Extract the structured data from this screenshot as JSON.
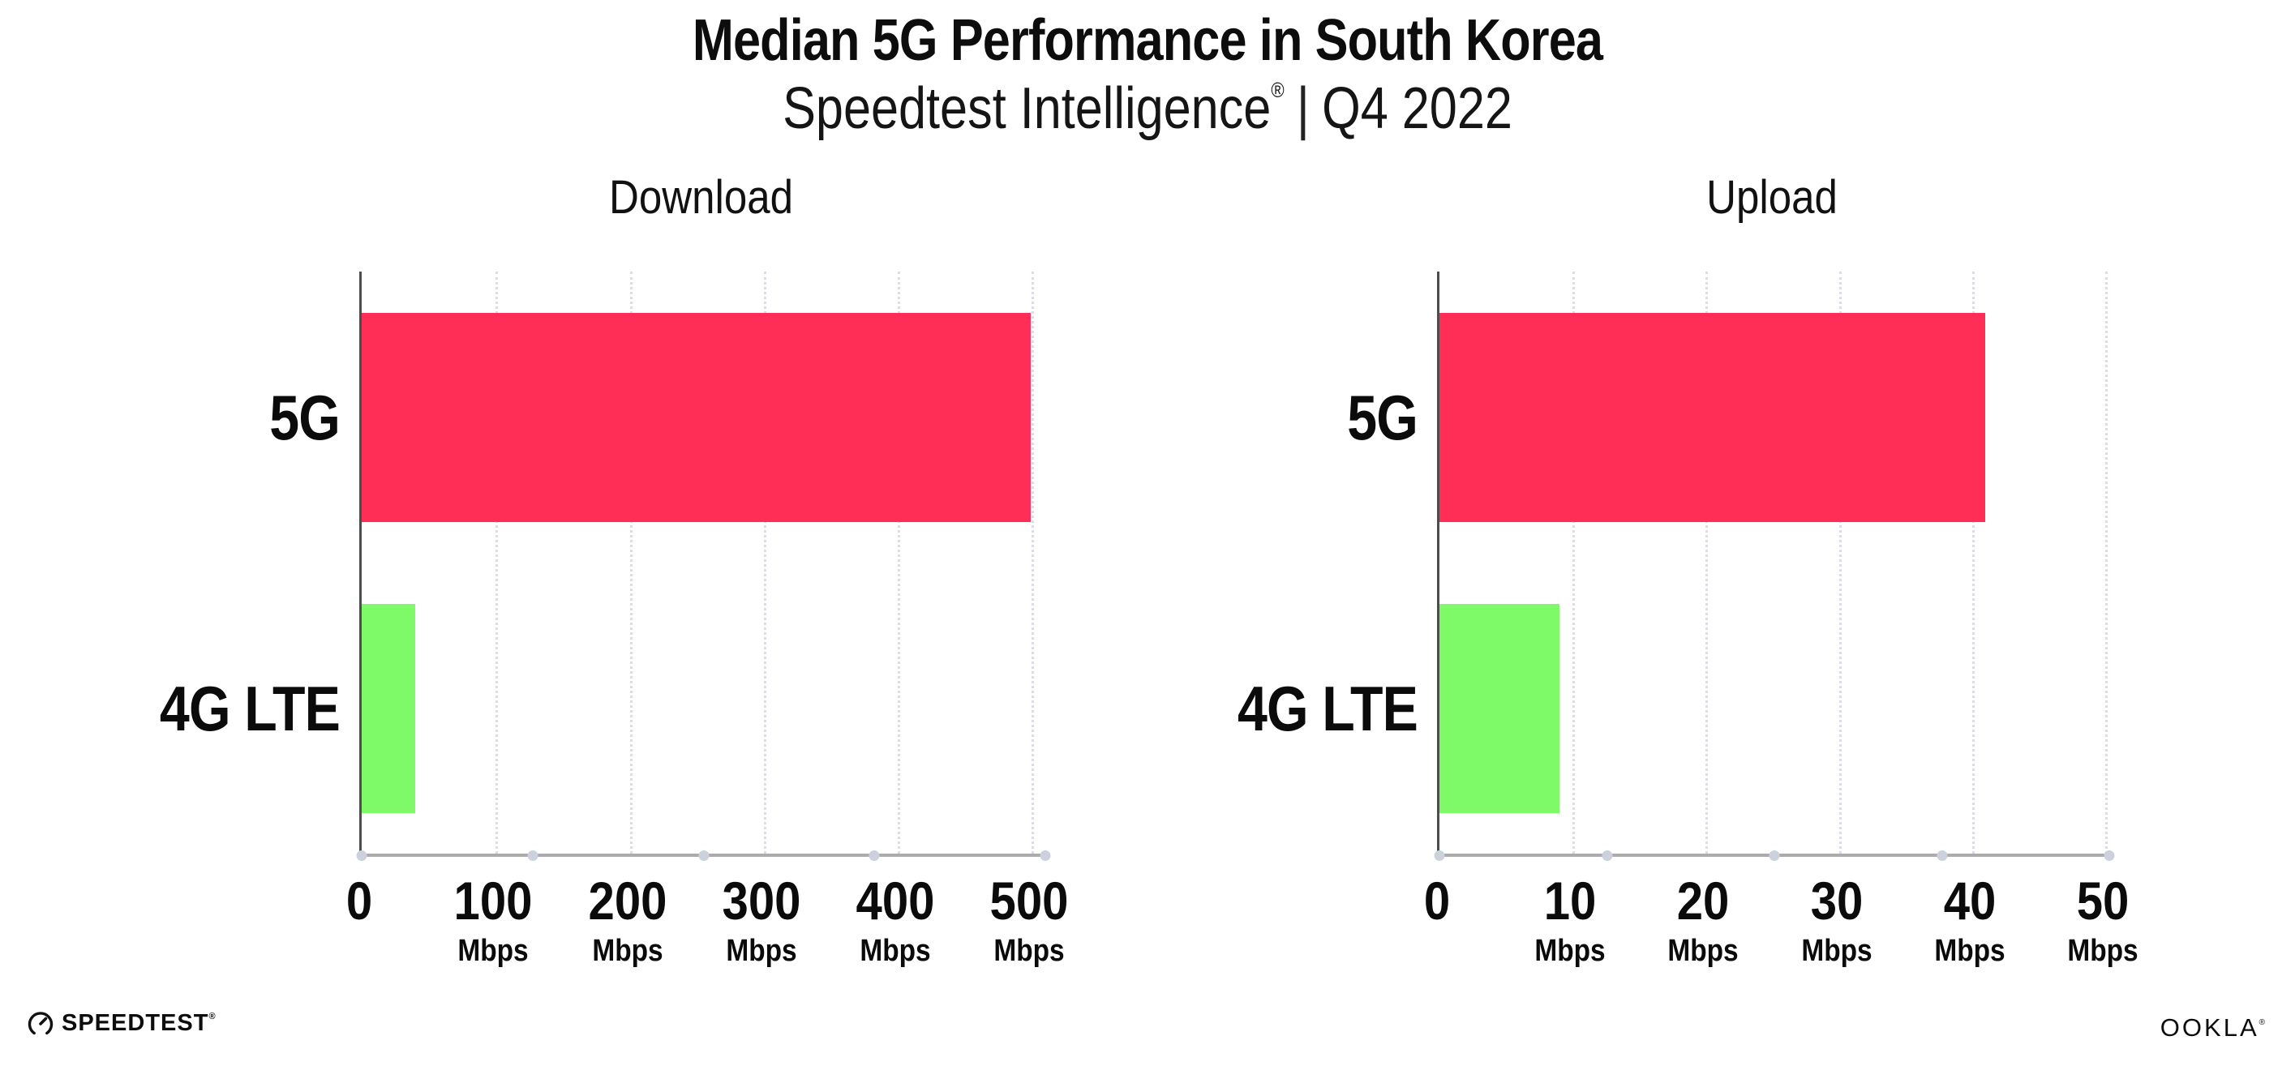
{
  "header": {
    "title": "Median 5G Performance in South Korea",
    "subtitle_brand": "Speedtest Intelligence",
    "subtitle_reg": "®",
    "subtitle_sep": "|",
    "subtitle_period": "Q4 2022"
  },
  "chart_data": [
    {
      "type": "bar",
      "orientation": "horizontal",
      "title": "Download",
      "categories": [
        "5G",
        "4G LTE"
      ],
      "values": [
        499,
        40
      ],
      "unit": "Mbps",
      "xlim": [
        0,
        510
      ],
      "ticks": [
        0,
        100,
        200,
        300,
        400,
        500
      ],
      "bar_colors": [
        "#FF2E56",
        "#7EFA69"
      ],
      "grid": "dotted-vertical",
      "legend": false
    },
    {
      "type": "bar",
      "orientation": "horizontal",
      "title": "Upload",
      "categories": [
        "5G",
        "4G LTE"
      ],
      "values": [
        41,
        9
      ],
      "unit": "Mbps",
      "xlim": [
        0,
        50.3
      ],
      "ticks": [
        0,
        10,
        20,
        30,
        40,
        50
      ],
      "bar_colors": [
        "#FF2E56",
        "#7EFA69"
      ],
      "grid": "dotted-vertical",
      "legend": false
    }
  ],
  "footer": {
    "speedtest_label": "SPEEDTEST",
    "speedtest_reg": "®",
    "ookla_label": "OOKLA",
    "ookla_reg": "®"
  },
  "colors": {
    "bar_5g": "#FF2E56",
    "bar_4g_lte": "#7EFA69",
    "text": "#0D0D0D",
    "gridline": "#DCDCE4",
    "axis_baseline": "#ACACAC",
    "axis_line": "#4D4D4D",
    "tick_dot": "#CCD1DD",
    "background": "#FFFFFF"
  }
}
